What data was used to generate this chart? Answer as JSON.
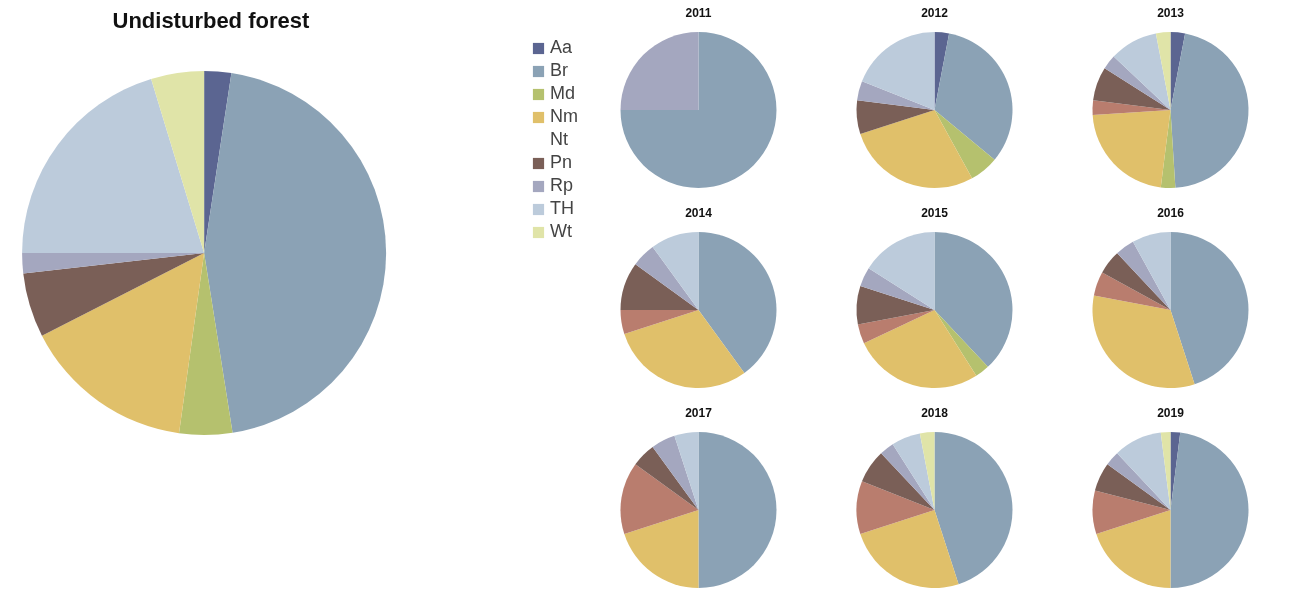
{
  "chart_data": [
    {
      "type": "pie",
      "title": "Undisturbed forest",
      "legend": "top right",
      "categories": [
        "Aa",
        "Br",
        "Md",
        "Nm",
        "Nt",
        "Pn",
        "Rp",
        "TH",
        "Wt"
      ],
      "colors": [
        "#5b6591",
        "#8ba2b5",
        "#b5c16e",
        "#e0c06a",
        "#b97d6e",
        "#7a5f57",
        "#a4a7bf",
        "#bccbdb",
        "#e0e4a8"
      ],
      "values": [
        2.4,
        45.1,
        4.7,
        15.3,
        0,
        5.7,
        1.8,
        20.3,
        4.7
      ]
    },
    {
      "type": "pie",
      "title": "2011",
      "categories": [
        null,
        null,
        null,
        null,
        null,
        null,
        null,
        null,
        null
      ],
      "colors": [
        "#5b6591",
        "#8ba2b5",
        "#b5c16e",
        "#e0c06a",
        "#b97d6e",
        "#7a5f57",
        "#a4a7bf",
        "#bccbdb",
        "#e0e4a8"
      ],
      "values": [
        0,
        75,
        0,
        0,
        0,
        0,
        25,
        0,
        0
      ]
    },
    {
      "type": "pie",
      "title": "2012",
      "categories": [
        null,
        null,
        null,
        null,
        null,
        null,
        null,
        null,
        null
      ],
      "colors": [
        "#5b6591",
        "#8ba2b5",
        "#b5c16e",
        "#e0c06a",
        "#b97d6e",
        "#7a5f57",
        "#a4a7bf",
        "#bccbdb",
        "#e0e4a8"
      ],
      "values": [
        3,
        33,
        6,
        28,
        0,
        7,
        4,
        19,
        0
      ]
    },
    {
      "type": "pie",
      "title": "2013",
      "categories": [
        null,
        null,
        null,
        null,
        null,
        null,
        null,
        null,
        null
      ],
      "colors": [
        "#5b6591",
        "#8ba2b5",
        "#b5c16e",
        "#e0c06a",
        "#b97d6e",
        "#7a5f57",
        "#a4a7bf",
        "#bccbdb",
        "#e0e4a8"
      ],
      "values": [
        3,
        46,
        3,
        22,
        3,
        7,
        3,
        10,
        3
      ]
    },
    {
      "type": "pie",
      "title": "2014",
      "categories": [
        null,
        null,
        null,
        null,
        null,
        null,
        null,
        null,
        null
      ],
      "colors": [
        "#5b6591",
        "#8ba2b5",
        "#b5c16e",
        "#e0c06a",
        "#b97d6e",
        "#7a5f57",
        "#a4a7bf",
        "#bccbdb",
        "#e0e4a8"
      ],
      "values": [
        0,
        40,
        0,
        30,
        5,
        10,
        5,
        10,
        0
      ]
    },
    {
      "type": "pie",
      "title": "2015",
      "categories": [
        null,
        null,
        null,
        null,
        null,
        null,
        null,
        null,
        null
      ],
      "colors": [
        "#5b6591",
        "#8ba2b5",
        "#b5c16e",
        "#e0c06a",
        "#b97d6e",
        "#7a5f57",
        "#a4a7bf",
        "#bccbdb",
        "#e0e4a8"
      ],
      "values": [
        0,
        38,
        3,
        27,
        4,
        8,
        4,
        16,
        0
      ]
    },
    {
      "type": "pie",
      "title": "2016",
      "categories": [
        null,
        null,
        null,
        null,
        null,
        null,
        null,
        null,
        null
      ],
      "colors": [
        "#5b6591",
        "#8ba2b5",
        "#b5c16e",
        "#e0c06a",
        "#b97d6e",
        "#7a5f57",
        "#a4a7bf",
        "#bccbdb",
        "#e0e4a8"
      ],
      "values": [
        0,
        45,
        0,
        33,
        5,
        5,
        4,
        8,
        0
      ]
    },
    {
      "type": "pie",
      "title": "2017",
      "categories": [
        null,
        null,
        null,
        null,
        null,
        null,
        null,
        null,
        null
      ],
      "colors": [
        "#5b6591",
        "#8ba2b5",
        "#b5c16e",
        "#e0c06a",
        "#b97d6e",
        "#7a5f57",
        "#a4a7bf",
        "#bccbdb",
        "#e0e4a8"
      ],
      "values": [
        0,
        50,
        0,
        20,
        15,
        5,
        5,
        5,
        0
      ]
    },
    {
      "type": "pie",
      "title": "2018",
      "categories": [
        null,
        null,
        null,
        null,
        null,
        null,
        null,
        null,
        null
      ],
      "colors": [
        "#5b6591",
        "#8ba2b5",
        "#b5c16e",
        "#e0c06a",
        "#b97d6e",
        "#7a5f57",
        "#a4a7bf",
        "#bccbdb",
        "#e0e4a8"
      ],
      "values": [
        0,
        45,
        0,
        25,
        11,
        7,
        3,
        6,
        3
      ]
    },
    {
      "type": "pie",
      "title": "2019",
      "categories": [
        null,
        null,
        null,
        null,
        null,
        null,
        null,
        null,
        null
      ],
      "colors": [
        "#5b6591",
        "#8ba2b5",
        "#b5c16e",
        "#e0c06a",
        "#b97d6e",
        "#7a5f57",
        "#a4a7bf",
        "#bccbdb",
        "#e0e4a8"
      ],
      "values": [
        2,
        48,
        0,
        20,
        9,
        6,
        3,
        10,
        2
      ]
    }
  ]
}
